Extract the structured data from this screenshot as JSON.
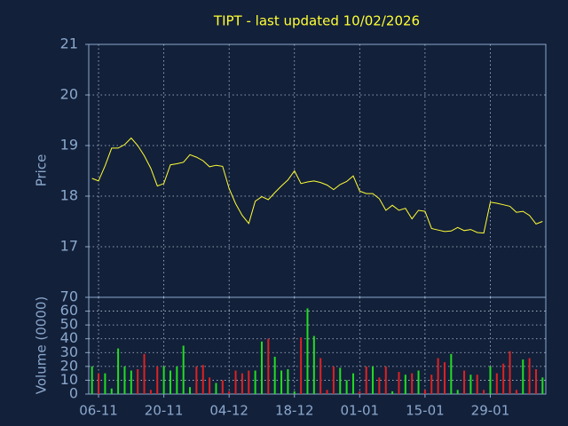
{
  "chart_data": [
    {
      "type": "line",
      "title": "TIPT - last updated 10/02/2026",
      "ylabel": "Price",
      "color": "#ffff33",
      "values": [
        18.35,
        18.3,
        18.6,
        18.95,
        18.95,
        19.02,
        19.15,
        19.0,
        18.8,
        18.55,
        18.2,
        18.25,
        18.62,
        18.64,
        18.67,
        18.82,
        18.77,
        18.7,
        18.58,
        18.61,
        18.59,
        18.15,
        17.85,
        17.62,
        17.46,
        17.9,
        17.99,
        17.93,
        18.07,
        18.2,
        18.32,
        18.5,
        18.25,
        18.28,
        18.3,
        18.27,
        18.22,
        18.13,
        18.23,
        18.29,
        18.4,
        18.1,
        18.05,
        18.05,
        17.95,
        17.72,
        17.82,
        17.72,
        17.76,
        17.55,
        17.72,
        17.7,
        17.36,
        17.33,
        17.3,
        17.31,
        17.38,
        17.32,
        17.34,
        17.28,
        17.27,
        17.88,
        17.86,
        17.83,
        17.8,
        17.68,
        17.7,
        17.62,
        17.45,
        17.5
      ],
      "ylim": [
        16,
        21
      ],
      "yticks": [
        17,
        18,
        19,
        20,
        21
      ],
      "grid": true
    },
    {
      "type": "bar",
      "ylabel": "Volume (0000)",
      "up_color": "#22dd22",
      "down_color": "#dd2222",
      "categories": [
        null,
        "06-11",
        null,
        null,
        null,
        null,
        null,
        null,
        null,
        null,
        null,
        "20-11",
        null,
        null,
        null,
        null,
        null,
        null,
        null,
        null,
        null,
        "04-12",
        null,
        null,
        null,
        null,
        null,
        null,
        null,
        null,
        null,
        "18-12",
        null,
        null,
        null,
        null,
        null,
        null,
        null,
        null,
        null,
        "01-01",
        null,
        null,
        null,
        null,
        null,
        null,
        null,
        null,
        null,
        "15-01",
        null,
        null,
        null,
        null,
        null,
        null,
        null,
        null,
        null,
        "29-01",
        null,
        null,
        null,
        null,
        null,
        null,
        null,
        null
      ],
      "values": [
        20,
        15,
        15,
        4,
        33,
        20,
        17,
        18,
        29,
        3,
        20,
        20,
        17,
        20,
        35,
        5,
        20,
        21,
        12,
        8,
        10,
        2,
        17,
        15,
        17,
        17,
        38,
        40,
        27,
        17,
        18,
        2,
        41,
        62,
        42,
        26,
        3,
        20,
        19,
        10,
        15,
        2,
        20,
        20,
        12,
        20,
        2,
        16,
        14,
        15,
        17,
        3,
        14,
        26,
        23,
        29,
        3,
        17,
        14,
        14,
        3,
        20,
        15,
        22,
        31,
        3,
        25,
        26,
        18,
        12
      ],
      "ylim": [
        0,
        70
      ],
      "yticks": [
        0,
        10,
        20,
        30,
        40,
        50,
        60,
        70
      ],
      "grid": true
    }
  ]
}
